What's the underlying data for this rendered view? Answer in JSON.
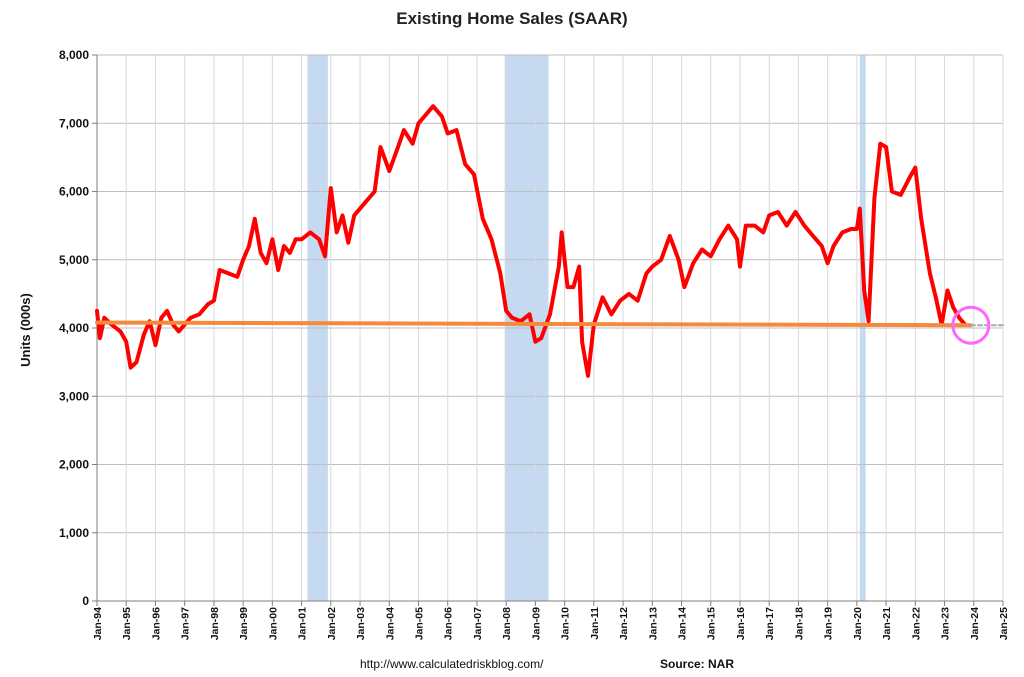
{
  "chart_data": {
    "type": "line",
    "title": "Existing Home Sales (SAAR)",
    "ylabel": "Units (000s)",
    "xlabel": "",
    "ylim": [
      0,
      8000
    ],
    "xlim": [
      "Jan-94",
      "Jan-25"
    ],
    "grid": true,
    "yticks": [
      "0",
      "1,000",
      "2,000",
      "3,000",
      "4,000",
      "5,000",
      "6,000",
      "7,000",
      "8,000"
    ],
    "ytick_values": [
      0,
      1000,
      2000,
      3000,
      4000,
      5000,
      6000,
      7000,
      8000
    ],
    "xticks": [
      "Jan-94",
      "Jan-95",
      "Jan-96",
      "Jan-97",
      "Jan-98",
      "Jan-99",
      "Jan-00",
      "Jan-01",
      "Jan-02",
      "Jan-03",
      "Jan-04",
      "Jan-05",
      "Jan-06",
      "Jan-07",
      "Jan-08",
      "Jan-09",
      "Jan-10",
      "Jan-11",
      "Jan-12",
      "Jan-13",
      "Jan-14",
      "Jan-15",
      "Jan-16",
      "Jan-17",
      "Jan-18",
      "Jan-19",
      "Jan-20",
      "Jan-21",
      "Jan-22",
      "Jan-23",
      "Jan-24",
      "Jan-25"
    ],
    "recessions": [
      {
        "start": 2001.2,
        "end": 2001.9
      },
      {
        "start": 2007.95,
        "end": 2009.45
      },
      {
        "start": 2020.1,
        "end": 2020.3
      }
    ],
    "series": [
      {
        "color": "#ff0000",
        "points": [
          [
            1994.0,
            4250
          ],
          [
            1994.1,
            3850
          ],
          [
            1994.25,
            4150
          ],
          [
            1994.5,
            4050
          ],
          [
            1994.8,
            3950
          ],
          [
            1995.0,
            3800
          ],
          [
            1995.15,
            3420
          ],
          [
            1995.35,
            3500
          ],
          [
            1995.6,
            3900
          ],
          [
            1995.8,
            4100
          ],
          [
            1996.0,
            3750
          ],
          [
            1996.2,
            4150
          ],
          [
            1996.4,
            4250
          ],
          [
            1996.6,
            4050
          ],
          [
            1996.8,
            3950
          ],
          [
            1997.0,
            4050
          ],
          [
            1997.2,
            4150
          ],
          [
            1997.5,
            4200
          ],
          [
            1997.8,
            4350
          ],
          [
            1998.0,
            4400
          ],
          [
            1998.2,
            4850
          ],
          [
            1998.5,
            4800
          ],
          [
            1998.8,
            4750
          ],
          [
            1999.0,
            5000
          ],
          [
            1999.2,
            5200
          ],
          [
            1999.4,
            5600
          ],
          [
            1999.6,
            5100
          ],
          [
            1999.8,
            4950
          ],
          [
            2000.0,
            5300
          ],
          [
            2000.2,
            4850
          ],
          [
            2000.4,
            5200
          ],
          [
            2000.6,
            5100
          ],
          [
            2000.8,
            5300
          ],
          [
            2001.0,
            5300
          ],
          [
            2001.3,
            5400
          ],
          [
            2001.6,
            5300
          ],
          [
            2001.8,
            5050
          ],
          [
            2002.0,
            6050
          ],
          [
            2002.2,
            5400
          ],
          [
            2002.4,
            5650
          ],
          [
            2002.6,
            5250
          ],
          [
            2002.8,
            5650
          ],
          [
            2003.0,
            5750
          ],
          [
            2003.2,
            5850
          ],
          [
            2003.5,
            6000
          ],
          [
            2003.7,
            6650
          ],
          [
            2004.0,
            6300
          ],
          [
            2004.3,
            6650
          ],
          [
            2004.5,
            6900
          ],
          [
            2004.8,
            6700
          ],
          [
            2005.0,
            7000
          ],
          [
            2005.3,
            7150
          ],
          [
            2005.5,
            7250
          ],
          [
            2005.8,
            7100
          ],
          [
            2006.0,
            6850
          ],
          [
            2006.3,
            6900
          ],
          [
            2006.6,
            6400
          ],
          [
            2006.9,
            6250
          ],
          [
            2007.2,
            5600
          ],
          [
            2007.5,
            5300
          ],
          [
            2007.8,
            4800
          ],
          [
            2008.0,
            4250
          ],
          [
            2008.2,
            4150
          ],
          [
            2008.5,
            4100
          ],
          [
            2008.8,
            4200
          ],
          [
            2009.0,
            3800
          ],
          [
            2009.2,
            3850
          ],
          [
            2009.5,
            4200
          ],
          [
            2009.8,
            4900
          ],
          [
            2009.9,
            5400
          ],
          [
            2010.1,
            4600
          ],
          [
            2010.3,
            4600
          ],
          [
            2010.5,
            4900
          ],
          [
            2010.6,
            3800
          ],
          [
            2010.8,
            3300
          ],
          [
            2011.0,
            4050
          ],
          [
            2011.3,
            4450
          ],
          [
            2011.6,
            4200
          ],
          [
            2011.9,
            4400
          ],
          [
            2012.2,
            4500
          ],
          [
            2012.5,
            4400
          ],
          [
            2012.8,
            4800
          ],
          [
            2013.0,
            4900
          ],
          [
            2013.3,
            5000
          ],
          [
            2013.6,
            5350
          ],
          [
            2013.9,
            5000
          ],
          [
            2014.1,
            4600
          ],
          [
            2014.4,
            4950
          ],
          [
            2014.7,
            5150
          ],
          [
            2015.0,
            5050
          ],
          [
            2015.3,
            5300
          ],
          [
            2015.6,
            5500
          ],
          [
            2015.9,
            5300
          ],
          [
            2016.0,
            4900
          ],
          [
            2016.2,
            5500
          ],
          [
            2016.5,
            5500
          ],
          [
            2016.8,
            5400
          ],
          [
            2017.0,
            5650
          ],
          [
            2017.3,
            5700
          ],
          [
            2017.6,
            5500
          ],
          [
            2017.9,
            5700
          ],
          [
            2018.2,
            5500
          ],
          [
            2018.5,
            5350
          ],
          [
            2018.8,
            5200
          ],
          [
            2019.0,
            4950
          ],
          [
            2019.2,
            5200
          ],
          [
            2019.5,
            5400
          ],
          [
            2019.8,
            5450
          ],
          [
            2020.0,
            5450
          ],
          [
            2020.1,
            5750
          ],
          [
            2020.25,
            4550
          ],
          [
            2020.4,
            4100
          ],
          [
            2020.6,
            5900
          ],
          [
            2020.8,
            6700
          ],
          [
            2021.0,
            6650
          ],
          [
            2021.2,
            6000
          ],
          [
            2021.5,
            5950
          ],
          [
            2021.8,
            6200
          ],
          [
            2022.0,
            6350
          ],
          [
            2022.2,
            5600
          ],
          [
            2022.5,
            4800
          ],
          [
            2022.7,
            4450
          ],
          [
            2022.9,
            4050
          ],
          [
            2023.1,
            4550
          ],
          [
            2023.3,
            4300
          ],
          [
            2023.5,
            4150
          ],
          [
            2023.7,
            4050
          ]
        ]
      },
      {
        "color": "#f58a3c",
        "points": [
          [
            1994.0,
            4080
          ],
          [
            2023.9,
            4040
          ]
        ]
      },
      {
        "color": "#aaaaaa",
        "dashed": true,
        "points": [
          [
            2023.9,
            4040
          ],
          [
            2025.0,
            4040
          ]
        ]
      }
    ],
    "highlight_circle": {
      "x": 2023.9,
      "y": 4040,
      "color": "#ff66ff"
    }
  },
  "footer": {
    "url": "http://www.calculatedriskblog.com/",
    "source": "Source: NAR"
  }
}
